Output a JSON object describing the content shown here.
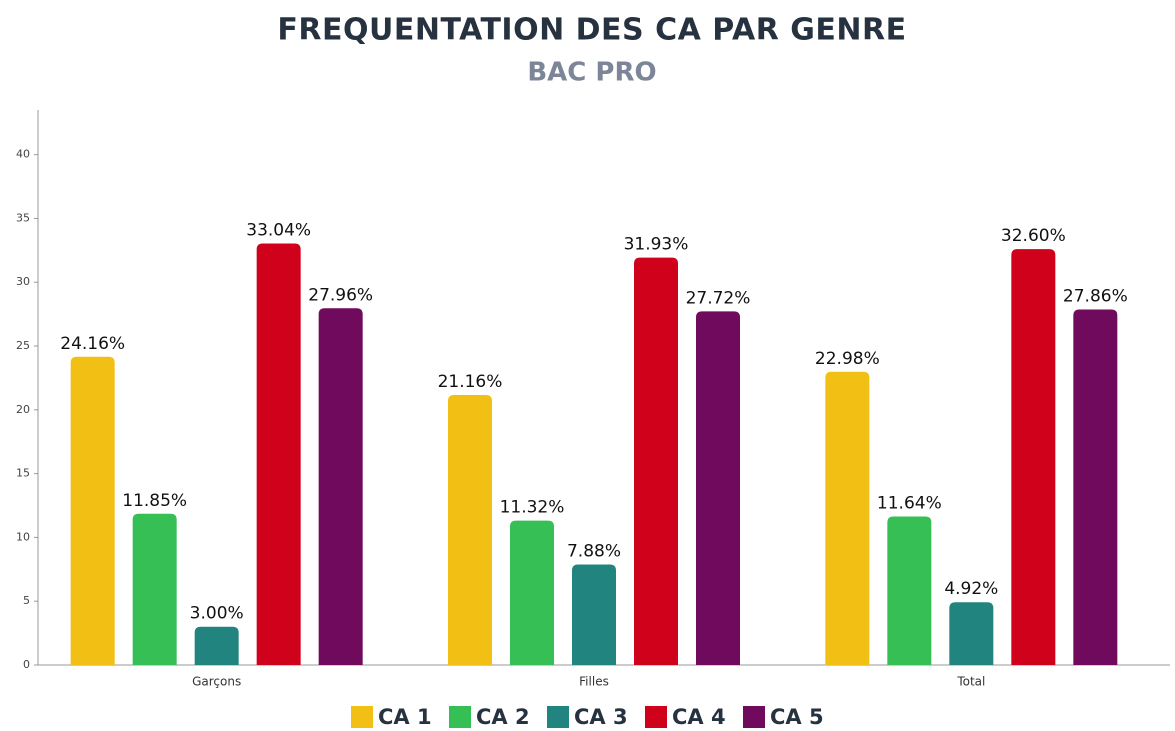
{
  "chart_data": {
    "type": "bar",
    "title": "FREQUENTATION DES CA PAR GENRE",
    "subtitle": "BAC PRO",
    "categories": [
      "Garçons",
      "Filles",
      "Total"
    ],
    "series": [
      {
        "name": "CA 1",
        "color": "#f2c014",
        "values": [
          24.16,
          21.16,
          22.98
        ],
        "value_labels": [
          "24.16%",
          "21.16%",
          "22.98%"
        ]
      },
      {
        "name": "CA 2",
        "color": "#35bf55",
        "values": [
          11.85,
          11.32,
          11.64
        ],
        "value_labels": [
          "11.85%",
          "11.32%",
          "11.64%"
        ]
      },
      {
        "name": "CA 3",
        "color": "#22847e",
        "values": [
          3.0,
          7.88,
          4.92
        ],
        "value_labels": [
          "3.00%",
          "7.88%",
          "4.92%"
        ]
      },
      {
        "name": "CA 4",
        "color": "#d0011b",
        "values": [
          33.04,
          31.93,
          32.6
        ],
        "value_labels": [
          "33.04%",
          "31.93%",
          "32.60%"
        ]
      },
      {
        "name": "CA 5",
        "color": "#6f0a5c",
        "values": [
          27.96,
          27.72,
          27.86
        ],
        "value_labels": [
          "27.96%",
          "27.72%",
          "27.86%"
        ]
      }
    ],
    "ylim": [
      0,
      43.5
    ],
    "yticks": [
      0,
      5,
      10,
      15,
      20,
      25,
      30,
      35,
      40
    ],
    "grid": false
  }
}
